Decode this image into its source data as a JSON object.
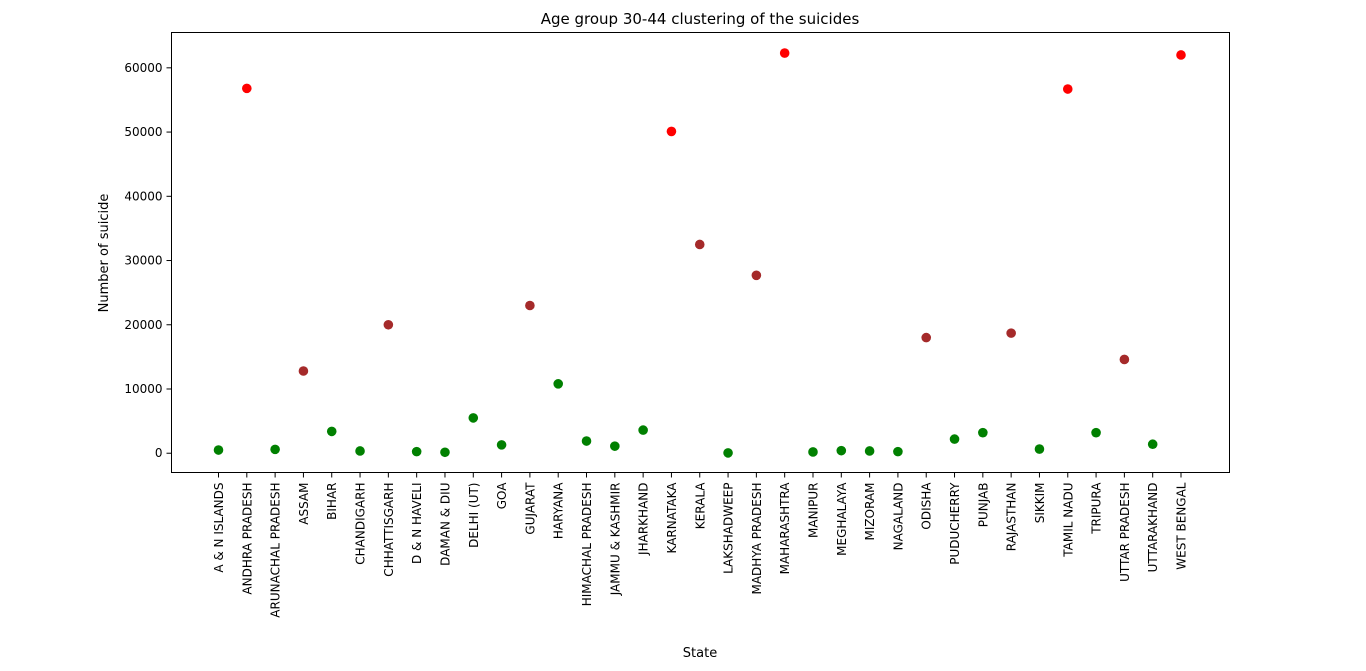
{
  "chart_data": {
    "type": "scatter",
    "title": "Age group 30-44 clustering of the suicides",
    "xlabel": "State",
    "ylabel": "Number of suicide",
    "ylim": [
      -3000,
      65500
    ],
    "yticks": [
      0,
      10000,
      20000,
      30000,
      40000,
      50000,
      60000
    ],
    "grid": false,
    "legend": "none",
    "colors": {
      "red": "#ff0000",
      "brown": "#a52a2a",
      "green": "#008000"
    },
    "categories": [
      "A & N ISLANDS",
      "ANDHRA PRADESH",
      "ARUNACHAL PRADESH",
      "ASSAM",
      "BIHAR",
      "CHANDIGARH",
      "CHHATTISGARH",
      "D & N HAVELI",
      "DAMAN & DIU",
      "DELHI (UT)",
      "GOA",
      "GUJARAT",
      "HARYANA",
      "HIMACHAL PRADESH",
      "JAMMU & KASHMIR",
      "JHARKHAND",
      "KARNATAKA",
      "KERALA",
      "LAKSHADWEEP",
      "MADHYA PRADESH",
      "MAHARASHTRA",
      "MANIPUR",
      "MEGHALAYA",
      "MIZORAM",
      "NAGALAND",
      "ODISHA",
      "PUDUCHERRY",
      "PUNJAB",
      "RAJASTHAN",
      "SIKKIM",
      "TAMIL NADU",
      "TRIPURA",
      "UTTAR PRADESH",
      "UTTARAKHAND",
      "WEST BENGAL"
    ],
    "values": [
      500,
      56800,
      600,
      12800,
      3400,
      350,
      20000,
      250,
      150,
      5500,
      1300,
      23000,
      10800,
      1900,
      1100,
      3600,
      50100,
      32500,
      50,
      27700,
      62300,
      200,
      400,
      350,
      250,
      18000,
      2200,
      3200,
      18700,
      650,
      56700,
      3200,
      14600,
      1400,
      62000
    ],
    "point_colors": [
      "green",
      "red",
      "green",
      "brown",
      "green",
      "green",
      "brown",
      "green",
      "green",
      "green",
      "green",
      "brown",
      "green",
      "green",
      "green",
      "green",
      "red",
      "brown",
      "green",
      "brown",
      "red",
      "green",
      "green",
      "green",
      "green",
      "brown",
      "green",
      "green",
      "brown",
      "green",
      "red",
      "green",
      "brown",
      "green",
      "red"
    ]
  }
}
